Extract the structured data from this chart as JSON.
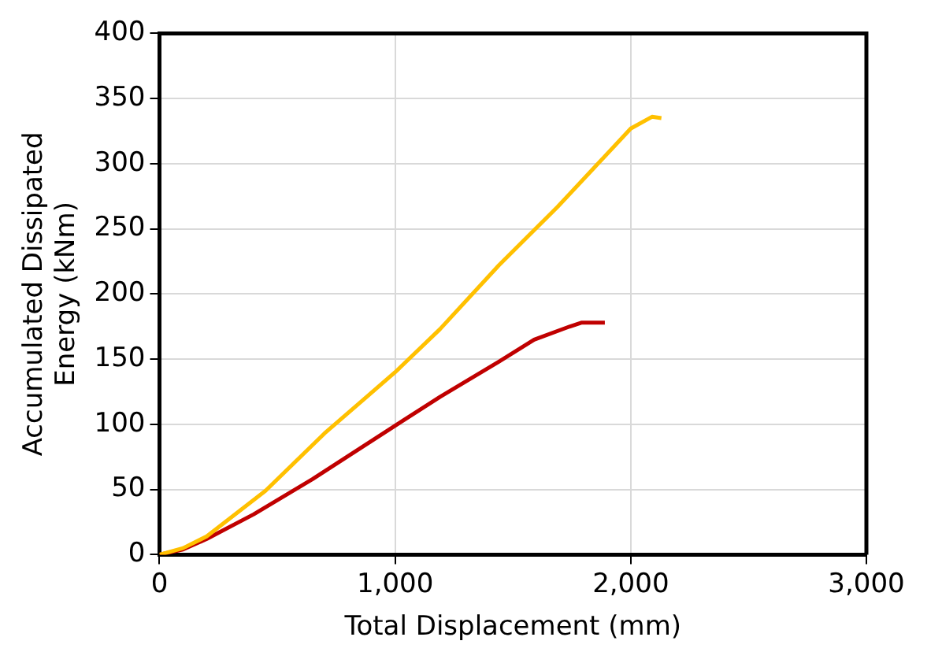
{
  "chart_data": {
    "type": "line",
    "xlabel": "Total Displacement (mm)",
    "ylabel": "Accumulated Dissipated Energy (kNm)",
    "xlim": [
      0,
      3000
    ],
    "xticks": [
      {
        "value": 0,
        "label": "0"
      },
      {
        "value": 1000,
        "label": "1,000"
      },
      {
        "value": 2000,
        "label": "2,000"
      },
      {
        "value": 3000,
        "label": "3,000"
      }
    ],
    "ylim": [
      0,
      400
    ],
    "yticks": [
      0,
      50,
      100,
      150,
      200,
      250,
      300,
      350,
      400
    ],
    "grid": true,
    "legend": false,
    "marker": "none",
    "line_style": "solid",
    "series": [
      {
        "color": "#ffc000",
        "x": [
          0,
          100,
          200,
          450,
          700,
          1000,
          1190,
          1440,
          1690,
          1840,
          2000,
          2090,
          2130
        ],
        "values": [
          0,
          5,
          14,
          49,
          93,
          140,
          173,
          222,
          267,
          296,
          327,
          336,
          335
        ]
      },
      {
        "color": "#c00000",
        "x": [
          0,
          100,
          200,
          400,
          650,
          1000,
          1190,
          1440,
          1590,
          1740,
          1790,
          1890
        ],
        "values": [
          0,
          4,
          12,
          31,
          58,
          99,
          121,
          148,
          165,
          175,
          178,
          178
        ]
      }
    ]
  }
}
